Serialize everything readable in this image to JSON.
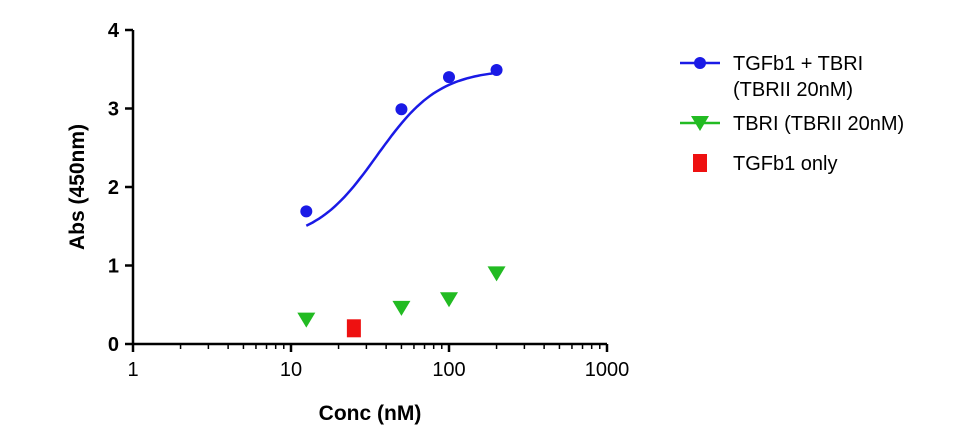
{
  "chart_data": {
    "type": "scatter",
    "title": "",
    "xlabel": "Conc (nM)",
    "ylabel": "Abs (450nm)",
    "xscale": "log",
    "xlim": [
      1,
      1000
    ],
    "ylim": [
      0,
      4
    ],
    "xticks": [
      "1",
      "10",
      "100",
      "1000"
    ],
    "xtick_values": [
      1,
      10,
      100,
      1000
    ],
    "yticks": [
      "0",
      "1",
      "2",
      "3",
      "4"
    ],
    "ytick_values": [
      0,
      1,
      2,
      3,
      4
    ],
    "grid": false,
    "legend_position": "right",
    "series": [
      {
        "name": "TGFb1 + TBRI (TBRII 20nM)",
        "legend_lines": [
          "TGFb1 + TBRI",
          "(TBRII 20nM)"
        ],
        "color": "#1a1ae6",
        "marker": "circle",
        "fit_curve": true,
        "x": [
          12.5,
          50,
          100,
          200
        ],
        "y": [
          1.69,
          2.99,
          3.4,
          3.49
        ]
      },
      {
        "name": "TBRI (TBRII 20nM)",
        "legend_lines": [
          "TBRI (TBRII 20nM)"
        ],
        "color": "#22bb22",
        "marker": "triangle-down",
        "fit_curve": false,
        "x": [
          12.5,
          50,
          100,
          200
        ],
        "y": [
          0.31,
          0.46,
          0.57,
          0.9
        ]
      },
      {
        "name": "TGFb1 only",
        "legend_lines": [
          "TGFb1 only"
        ],
        "color": "#ee1111",
        "marker": "square",
        "fit_curve": false,
        "x": [
          25
        ],
        "y": [
          0.2
        ]
      }
    ]
  }
}
